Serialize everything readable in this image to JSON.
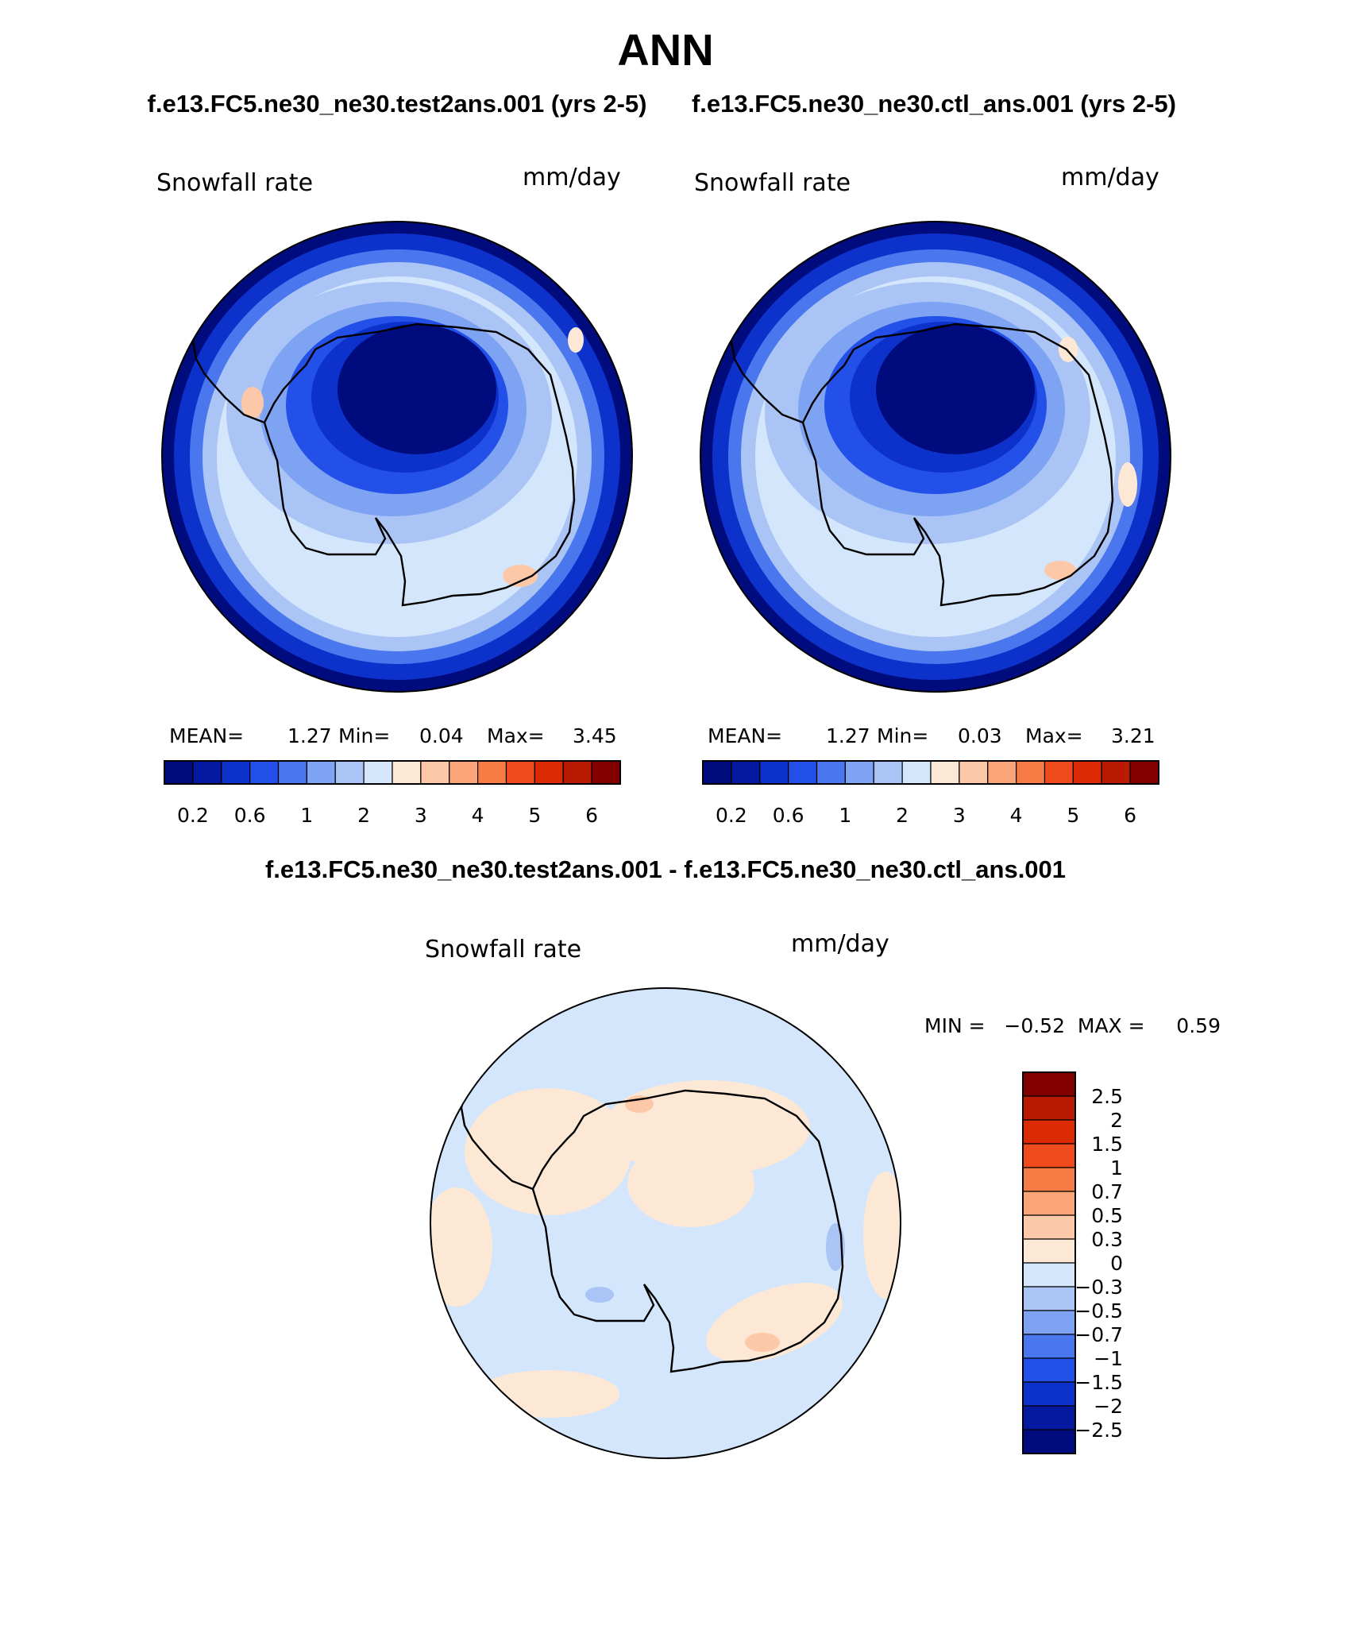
{
  "title": "ANN",
  "subtitle_left": "f.e13.FC5.ne30_ne30.test2ans.001 (yrs 2-5)",
  "subtitle_right": "f.e13.FC5.ne30_ne30.ctl_ans.001 (yrs 2-5)",
  "diff_title": "f.e13.FC5.ne30_ne30.test2ans.001 - f.e13.FC5.ne30_ne30.ctl_ans.001",
  "panels": [
    {
      "variable": "Snowfall rate",
      "units": "mm/day",
      "mean_label": "MEAN=",
      "mean": "1.27",
      "min_label": "Min=",
      "min": "0.04",
      "max_label": "Max=",
      "max": "3.45"
    },
    {
      "variable": "Snowfall rate",
      "units": "mm/day",
      "mean_label": "MEAN=",
      "mean": "1.27",
      "min_label": "Min=",
      "min": "0.03",
      "max_label": "Max=",
      "max": "3.21"
    }
  ],
  "diff_panel": {
    "variable": "Snowfall rate",
    "units": "mm/day",
    "minmax_text": "MIN =   −0.52  MAX =     0.59"
  },
  "colorbar_main": {
    "tick_labels": [
      "0.2",
      "0.6",
      "1",
      "2",
      "3",
      "4",
      "5",
      "6"
    ],
    "colors": [
      "#000c7d",
      "#0419a0",
      "#0d32cc",
      "#2250e8",
      "#4a77ee",
      "#7fa3f3",
      "#aac4f6",
      "#d4e6fb",
      "#fde8d5",
      "#fcc8a8",
      "#f9a578",
      "#f77b44",
      "#ef4b1c",
      "#dc2a05",
      "#b81a02",
      "#830000"
    ]
  },
  "colorbar_diff": {
    "tick_labels": [
      "2.5",
      "2",
      "1.5",
      "1",
      "0.7",
      "0.5",
      "0.3",
      "0",
      "−0.3",
      "−0.5",
      "−0.7",
      "−1",
      "−1.5",
      "−2",
      "−2.5"
    ],
    "colors": [
      "#830000",
      "#b81a02",
      "#dc2a05",
      "#ef4b1c",
      "#f77b44",
      "#f9a578",
      "#fcc8a8",
      "#fde8d5",
      "#d4e6fb",
      "#aac4f6",
      "#7fa3f3",
      "#4a77ee",
      "#2250e8",
      "#0d32cc",
      "#0419a0",
      "#000c7d"
    ]
  }
}
